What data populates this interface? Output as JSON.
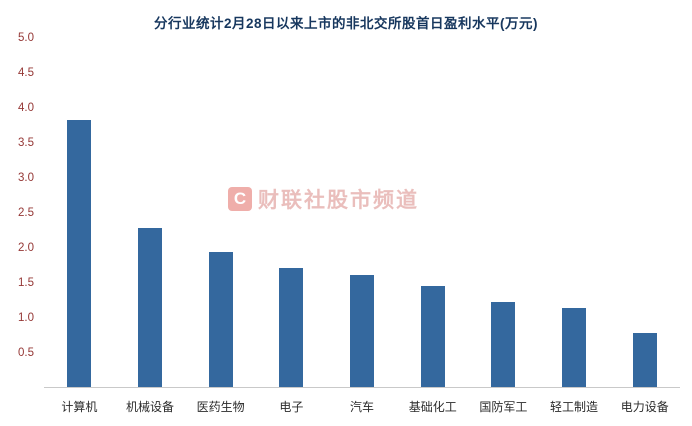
{
  "title": "分行业统计2月28日以来上市的非北交所股首日盈利水平(万元)",
  "watermark": {
    "logo_letter": "C",
    "text": "财联社股市频道"
  },
  "colors": {
    "bar": "#34689e",
    "title": "#17375e",
    "y_tick_label": "#953735",
    "x_tick_label": "#2b2b2b",
    "axis_line": "#c9c9c9",
    "watermark_text": "#d98a86",
    "watermark_logo_bg": "#d93a31"
  },
  "chart_data": {
    "type": "bar",
    "title": "分行业统计2月28日以来上市的非北交所股首日盈利水平(万元)",
    "categories": [
      "计算机",
      "机械设备",
      "医药生物",
      "电子",
      "汽车",
      "基础化工",
      "国防军工",
      "轻工制造",
      "电力设备"
    ],
    "values": [
      3.82,
      2.28,
      1.94,
      1.7,
      1.6,
      1.45,
      1.22,
      1.13,
      0.78
    ],
    "xlabel": "",
    "ylabel": "",
    "ylim": [
      0,
      5.0
    ],
    "yticks": [
      0.5,
      1.0,
      1.5,
      2.0,
      2.5,
      3.0,
      3.5,
      4.0,
      4.5,
      5.0
    ],
    "grid": false,
    "legend_position": "none",
    "unit": "万元"
  }
}
